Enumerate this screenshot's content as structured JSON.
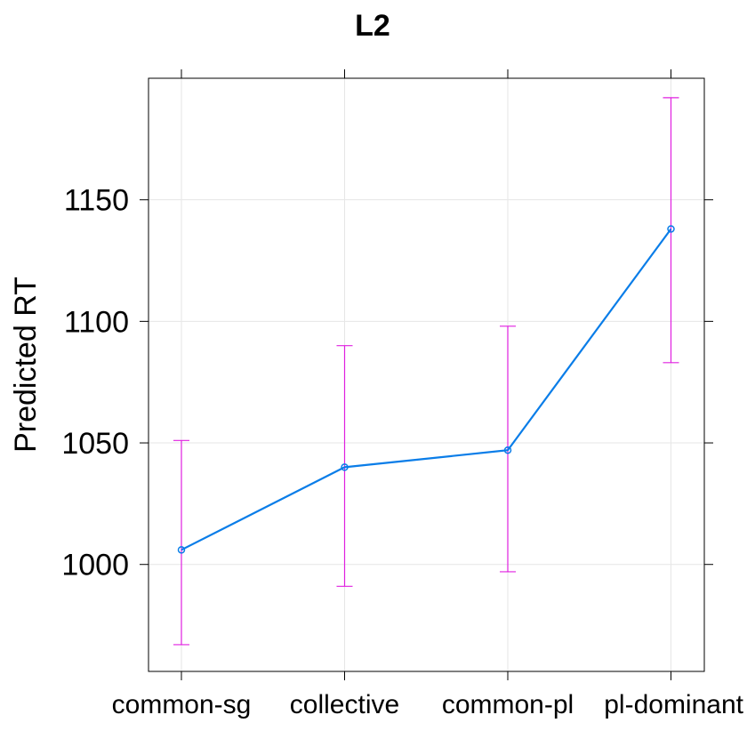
{
  "chart_data": {
    "type": "line",
    "title": "L2",
    "xlabel": "",
    "ylabel": "Predicted RT",
    "categories": [
      "common-sg",
      "collective",
      "common-pl",
      "pl-dominant"
    ],
    "series": [
      {
        "values": [
          1006,
          1040,
          1047,
          1138
        ],
        "lower": [
          967,
          991,
          997,
          1083
        ],
        "upper": [
          1051,
          1090,
          1098,
          1192
        ]
      }
    ],
    "y_ticks": [
      1000,
      1050,
      1100,
      1150
    ],
    "ylim": [
      956,
      1200
    ],
    "grid": true,
    "colors": {
      "line": "#0a7de8",
      "error_bar": "#e020e0",
      "grid": "#e6e6e6",
      "axis": "#000000"
    }
  }
}
